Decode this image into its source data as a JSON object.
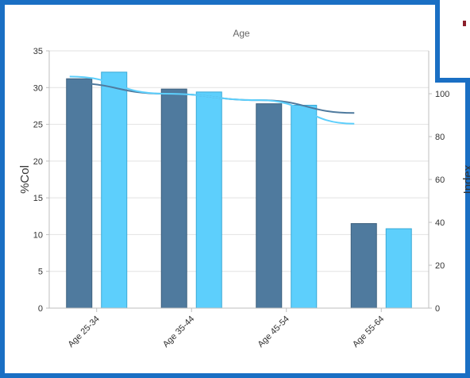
{
  "chart_data": {
    "type": "bar",
    "title": "Age",
    "ylabel": "%Col",
    "y2label": "Index",
    "categories": [
      "Age 25-34",
      "Age 35-44",
      "Age 45-54",
      "Age 55-64"
    ],
    "series": [
      {
        "values": [
          31.2,
          29.8,
          27.8,
          11.5
        ],
        "color": "#4f7a9e",
        "kind": "bar"
      },
      {
        "values": [
          32.1,
          29.4,
          27.6,
          10.8
        ],
        "color": "#5dcffc",
        "kind": "bar"
      },
      {
        "values": [
          105,
          100,
          97,
          91
        ],
        "color": "#4f7a9e",
        "kind": "line",
        "axis": "right"
      },
      {
        "values": [
          108,
          100,
          97,
          86
        ],
        "color": "#5dcffc",
        "kind": "line",
        "axis": "right"
      }
    ],
    "ylim": [
      0,
      35
    ],
    "yticks": [
      0,
      5,
      10,
      15,
      20,
      25,
      30,
      35
    ],
    "y2lim": [
      0,
      120
    ],
    "y2ticks": [
      0,
      20,
      40,
      60,
      80,
      100
    ],
    "grid": true
  },
  "colors": {
    "frame": "#1a6fc4",
    "grid": "#e2e2e2",
    "axis": "#bfbfbf",
    "text": "#333333",
    "title": "#666666"
  }
}
